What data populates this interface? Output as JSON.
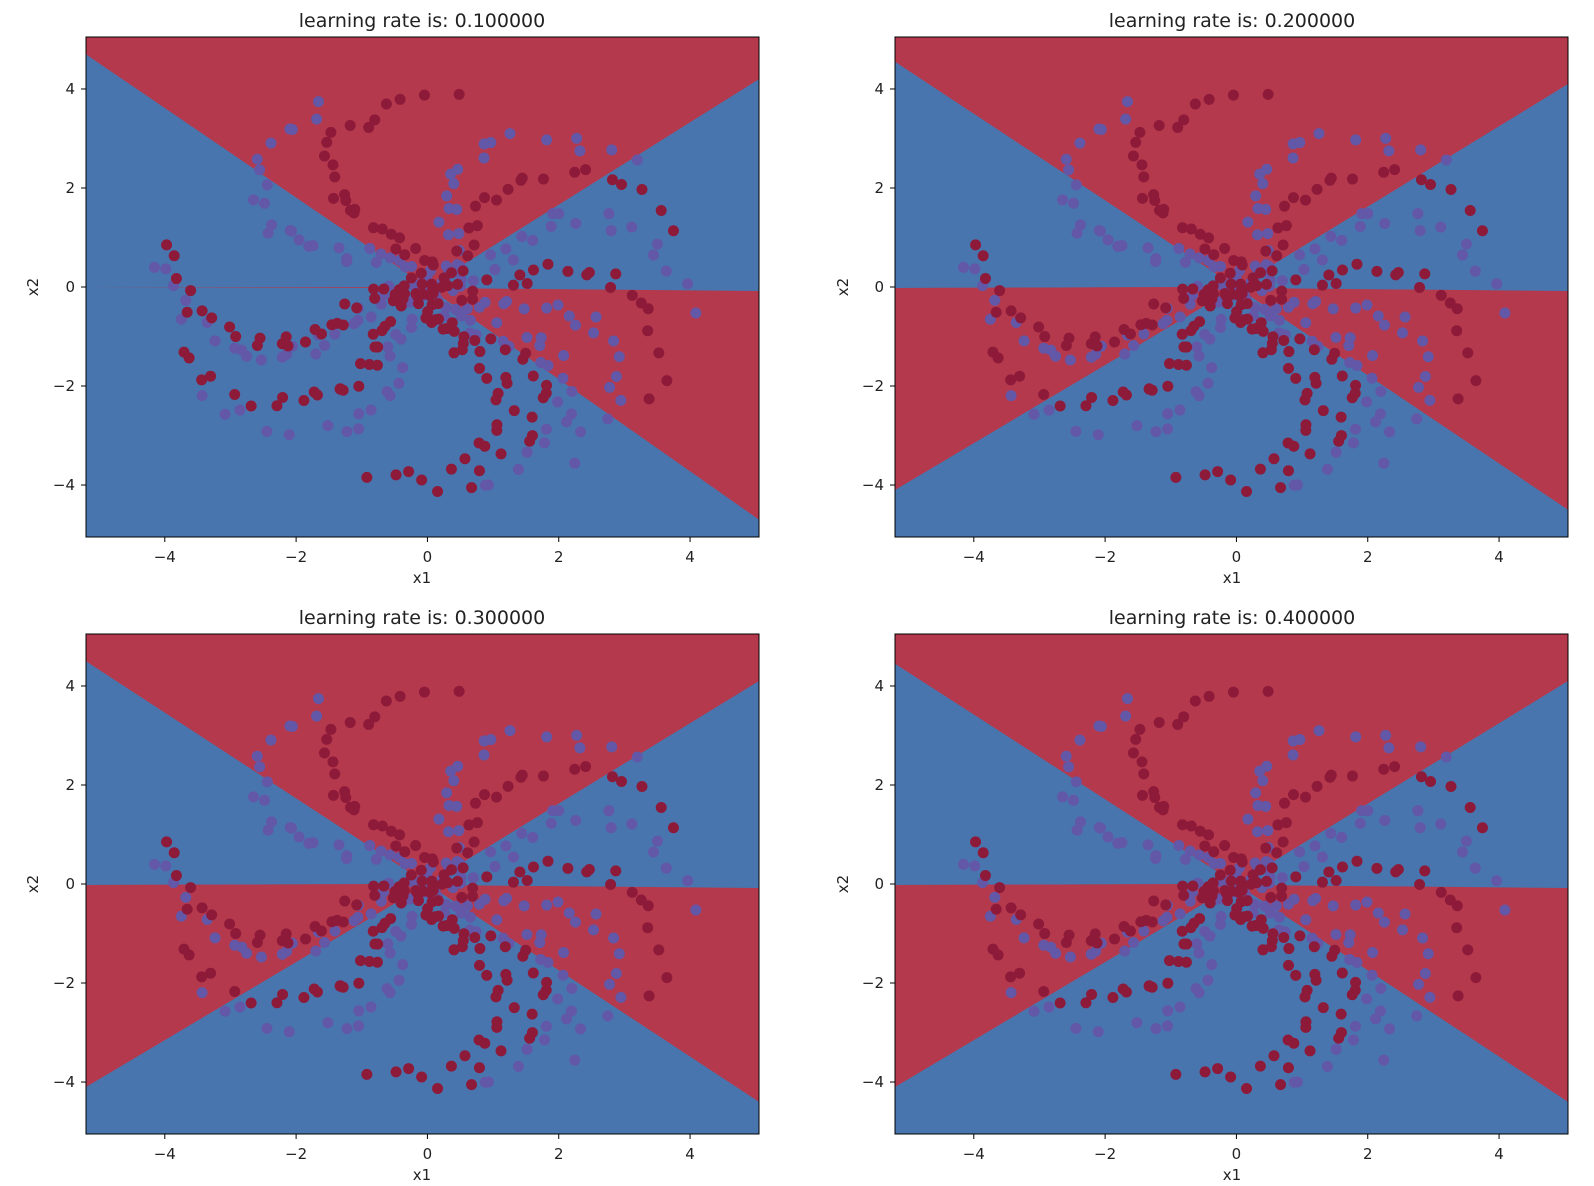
{
  "colors": {
    "region_class0": "#b5394d",
    "region_class1": "#4875ae",
    "point_class0": "#8e1a3a",
    "point_class1": "#6357a8",
    "seam": "#f3e6a8",
    "axes": "#000000"
  },
  "chart_data": [
    {
      "type": "scatter",
      "title": "learning rate is: 0.100000",
      "learning_rate": 0.1,
      "xlabel": "x1",
      "ylabel": "x2",
      "xlim": [
        -5.2,
        5.05
      ],
      "ylim": [
        -5.05,
        5.05
      ],
      "xticks": [
        -4,
        -2,
        0,
        2,
        4
      ],
      "yticks": [
        -4,
        -2,
        0,
        2,
        4
      ],
      "xtick_labels": [
        "−4",
        "−2",
        "0",
        "2",
        "4"
      ],
      "ytick_labels": [
        "−4",
        "−2",
        "0",
        "2",
        "4"
      ],
      "grid": false,
      "legend": "none",
      "decision_boundary": {
        "class0_region": [
          [
            [
              -5.2,
              5.05
            ],
            [
              -5.2,
              4.7
            ],
            [
              0,
              0
            ],
            [
              5.05,
              4.2
            ],
            [
              5.05,
              5.05
            ]
          ],
          [
            [
              -5.2,
              -0.02
            ],
            [
              0,
              0
            ],
            [
              5.05,
              -4.7
            ],
            [
              5.05,
              -0.08
            ],
            [
              0,
              -0.02
            ]
          ]
        ]
      },
      "points": {
        "class0_arms": [
          [
            15,
            8
          ],
          [
            82,
            10
          ],
          [
            165,
            10
          ],
          [
            -35,
            8
          ],
          [
            -105,
            10
          ],
          [
            -165,
            10
          ],
          [
            -90,
            8
          ]
        ],
        "class1_arms": [
          [
            -10,
            8
          ],
          [
            -60,
            8
          ],
          [
            -82,
            10
          ],
          [
            35,
            8
          ],
          [
            110,
            10
          ],
          [
            170,
            10
          ],
          [
            -150,
            8
          ]
        ]
      }
    },
    {
      "type": "scatter",
      "title": "learning rate is: 0.200000",
      "learning_rate": 0.2,
      "xlabel": "x1",
      "ylabel": "x2",
      "xlim": [
        -5.2,
        5.05
      ],
      "ylim": [
        -5.05,
        5.05
      ],
      "xticks": [
        -4,
        -2,
        0,
        2,
        4
      ],
      "yticks": [
        -4,
        -2,
        0,
        2,
        4
      ],
      "xtick_labels": [
        "−4",
        "−2",
        "0",
        "2",
        "4"
      ],
      "ytick_labels": [
        "−4",
        "−2",
        "0",
        "2",
        "4"
      ],
      "grid": false,
      "legend": "none",
      "decision_boundary": {
        "class0_region": [
          [
            [
              -5.2,
              5.05
            ],
            [
              -5.2,
              4.55
            ],
            [
              0,
              0
            ],
            [
              5.05,
              4.1
            ],
            [
              5.05,
              5.05
            ]
          ],
          [
            [
              -5.2,
              -0.02
            ],
            [
              0,
              0
            ],
            [
              5.05,
              -4.5
            ],
            [
              5.05,
              -0.08
            ],
            [
              0,
              -0.02
            ]
          ],
          [
            [
              -5.2,
              -4.1
            ],
            [
              0,
              0
            ],
            [
              -5.2,
              -0.02
            ]
          ]
        ]
      },
      "points": {
        "class0_arms": [
          [
            15,
            8
          ],
          [
            82,
            10
          ],
          [
            165,
            10
          ],
          [
            -35,
            8
          ],
          [
            -105,
            10
          ],
          [
            -165,
            10
          ],
          [
            -90,
            8
          ]
        ],
        "class1_arms": [
          [
            -10,
            8
          ],
          [
            -60,
            8
          ],
          [
            -82,
            10
          ],
          [
            35,
            8
          ],
          [
            110,
            10
          ],
          [
            170,
            10
          ],
          [
            -150,
            8
          ]
        ]
      }
    },
    {
      "type": "scatter",
      "title": "learning rate is: 0.300000",
      "learning_rate": 0.3,
      "xlabel": "x1",
      "ylabel": "x2",
      "xlim": [
        -5.2,
        5.05
      ],
      "ylim": [
        -5.05,
        5.05
      ],
      "xticks": [
        -4,
        -2,
        0,
        2,
        4
      ],
      "yticks": [
        -4,
        -2,
        0,
        2,
        4
      ],
      "xtick_labels": [
        "−4",
        "−2",
        "0",
        "2",
        "4"
      ],
      "ytick_labels": [
        "−4",
        "−2",
        "0",
        "2",
        "4"
      ],
      "grid": false,
      "legend": "none",
      "decision_boundary": {
        "class0_region": [
          [
            [
              -5.2,
              5.05
            ],
            [
              -5.2,
              4.5
            ],
            [
              0,
              0
            ],
            [
              5.05,
              4.1
            ],
            [
              5.05,
              5.05
            ]
          ],
          [
            [
              -5.2,
              -0.02
            ],
            [
              0,
              0
            ],
            [
              5.05,
              -4.4
            ],
            [
              5.05,
              -0.08
            ],
            [
              0,
              -0.02
            ]
          ],
          [
            [
              -5.2,
              -4.1
            ],
            [
              0,
              0
            ],
            [
              -5.2,
              -0.02
            ]
          ]
        ]
      },
      "points": {
        "class0_arms": [
          [
            15,
            8
          ],
          [
            82,
            10
          ],
          [
            165,
            10
          ],
          [
            -35,
            8
          ],
          [
            -105,
            10
          ],
          [
            -165,
            10
          ],
          [
            -90,
            8
          ]
        ],
        "class1_arms": [
          [
            -10,
            8
          ],
          [
            -60,
            8
          ],
          [
            -82,
            10
          ],
          [
            35,
            8
          ],
          [
            110,
            10
          ],
          [
            170,
            10
          ],
          [
            -150,
            8
          ]
        ]
      }
    },
    {
      "type": "scatter",
      "title": "learning rate is: 0.400000",
      "learning_rate": 0.4,
      "xlabel": "x1",
      "ylabel": "x2",
      "xlim": [
        -5.2,
        5.05
      ],
      "ylim": [
        -5.05,
        5.05
      ],
      "xticks": [
        -4,
        -2,
        0,
        2,
        4
      ],
      "yticks": [
        -4,
        -2,
        0,
        2,
        4
      ],
      "xtick_labels": [
        "−4",
        "−2",
        "0",
        "2",
        "4"
      ],
      "ytick_labels": [
        "−4",
        "−2",
        "0",
        "2",
        "4"
      ],
      "grid": false,
      "legend": "none",
      "decision_boundary": {
        "class0_region": [
          [
            [
              -5.2,
              5.05
            ],
            [
              -5.2,
              4.45
            ],
            [
              0,
              0
            ],
            [
              5.05,
              4.1
            ],
            [
              5.05,
              5.05
            ]
          ],
          [
            [
              -5.2,
              -0.02
            ],
            [
              0,
              0
            ],
            [
              5.05,
              -4.4
            ],
            [
              5.05,
              -0.08
            ],
            [
              0,
              -0.02
            ]
          ],
          [
            [
              -5.2,
              -4.1
            ],
            [
              0,
              0
            ],
            [
              -5.2,
              -0.02
            ]
          ]
        ]
      },
      "points": {
        "class0_arms": [
          [
            15,
            8
          ],
          [
            82,
            10
          ],
          [
            165,
            10
          ],
          [
            -35,
            8
          ],
          [
            -105,
            10
          ],
          [
            -165,
            10
          ],
          [
            -90,
            8
          ]
        ],
        "class1_arms": [
          [
            -10,
            8
          ],
          [
            -60,
            8
          ],
          [
            -82,
            10
          ],
          [
            35,
            8
          ],
          [
            110,
            10
          ],
          [
            170,
            10
          ],
          [
            -150,
            8
          ]
        ]
      }
    }
  ]
}
